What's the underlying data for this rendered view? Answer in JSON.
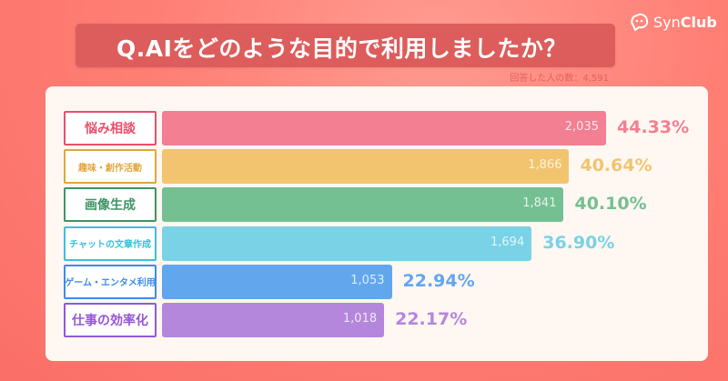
{
  "brand": "SynClub",
  "brand_parts": [
    "Syn",
    "Club"
  ],
  "chart_data": {
    "type": "bar",
    "orientation": "horizontal",
    "title": "Q.AIをどのような目的で利用しましたか？",
    "subtitle": "回答した人の数：4,591",
    "categories": [
      "悩み相談",
      "趣味・創作活動",
      "画像生成",
      "チャットの文章作成",
      "ゲーム・エンタメ利用",
      "仕事の効率化"
    ],
    "values": [
      2035,
      1866,
      1841,
      1694,
      1053,
      1018
    ],
    "value_labels": [
      "2,035",
      "1,866",
      "1,841",
      "1,694",
      "1,053",
      "1,018"
    ],
    "percent_labels": [
      "44.33%",
      "40.64%",
      "40.10%",
      "36.90%",
      "22.94%",
      "22.17%"
    ],
    "colors": [
      "#f27f92",
      "#f2c46f",
      "#74c092",
      "#79d2e6",
      "#62a6ee",
      "#b487dc"
    ],
    "label_colors": [
      "#e94f6c",
      "#e0a63c",
      "#3e9465",
      "#3ac0de",
      "#3d8cee",
      "#9457d8"
    ],
    "xlim": [
      0,
      2035
    ],
    "grid": false
  }
}
